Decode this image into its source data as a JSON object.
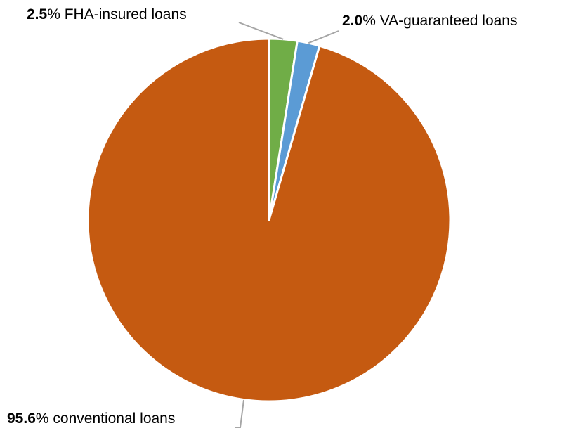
{
  "chart_data": {
    "type": "pie",
    "slices": [
      {
        "label": "FHA-insured loans",
        "value": 2.5,
        "value_text": "2.5",
        "color": "#70ad47"
      },
      {
        "label": "VA-guaranteed loans",
        "value": 2.0,
        "value_text": "2.0",
        "color": "#5b9bd5"
      },
      {
        "label": "conventional loans",
        "value": 95.6,
        "value_text": "95.6",
        "color": "#c55a11"
      }
    ],
    "percent_suffix": "%",
    "start_angle": "12 o'clock",
    "direction": "clockwise",
    "legend": "none"
  }
}
